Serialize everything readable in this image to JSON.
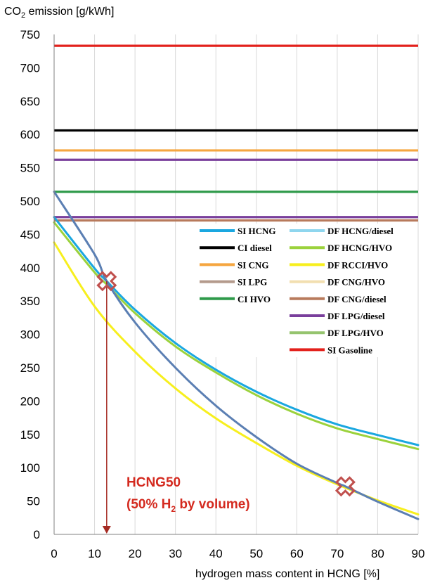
{
  "chart_data": {
    "type": "line",
    "ylabel_prefix": "CO",
    "ylabel_sub": "2",
    "ylabel_suffix": " emission [g/kWh]",
    "xlabel": "hydrogen mass content in HCNG [%]",
    "xlim": [
      0,
      90
    ],
    "ylim": [
      0,
      750
    ],
    "x_ticks": [
      "0",
      "10",
      "20",
      "30",
      "40",
      "50",
      "60",
      "70",
      "80",
      "90"
    ],
    "y_ticks": [
      "0",
      "50",
      "100",
      "150",
      "200",
      "250",
      "300",
      "350",
      "400",
      "450",
      "500",
      "550",
      "600",
      "650",
      "700",
      "750"
    ],
    "grid": "vertical",
    "legend_placement": "right",
    "legend": [
      {
        "name": "SI HCNG",
        "color": "#1aa7e0"
      },
      {
        "name": "CI diesel",
        "color": "#000000"
      },
      {
        "name": "SI CNG",
        "color": "#f5a640"
      },
      {
        "name": "SI LPG",
        "color": "#b49a8c"
      },
      {
        "name": "CI HVO",
        "color": "#2e9a4a"
      },
      {
        "name": "DF HCNG/diesel",
        "color": "#8fd6ee"
      },
      {
        "name": "DF HCNG/HVO",
        "color": "#9bd23c"
      },
      {
        "name": "DF RCCI/HVO",
        "color": "#f7ef1e"
      },
      {
        "name": "DF CNG/HVO",
        "color": "#f2dfb0"
      },
      {
        "name": "DF CNG/diesel",
        "color": "#b87a5c"
      },
      {
        "name": "DF LPG/diesel",
        "color": "#7a3f9c"
      },
      {
        "name": "DF LPG/HVO",
        "color": "#95c46e"
      },
      {
        "name": "SI Gasoline",
        "color": "#e3211c"
      }
    ],
    "horizontal_series": [
      {
        "value": 733,
        "color": "#e3211c"
      },
      {
        "value": 606,
        "color": "#000000"
      },
      {
        "value": 576,
        "color": "#f5a640"
      },
      {
        "value": 562,
        "color": "#7a3f9c"
      },
      {
        "value": 514,
        "color": "#2e9a4a"
      },
      {
        "value": 476,
        "color": "#7a3f9c"
      },
      {
        "value": 471,
        "color": "#b87a5c"
      }
    ],
    "curve_series": [
      {
        "color": "#9bd23c",
        "x": [
          0,
          10,
          13,
          20,
          30,
          40,
          50,
          60,
          70,
          80,
          90
        ],
        "y": [
          468,
          393,
          375,
          332,
          282,
          243,
          209,
          181,
          159,
          143,
          128
        ]
      },
      {
        "color": "#1aa7e0",
        "x": [
          0,
          10,
          13,
          20,
          30,
          40,
          50,
          60,
          70,
          80,
          90
        ],
        "y": [
          476,
          399,
          380,
          337,
          287,
          247,
          214,
          187,
          165,
          149,
          134
        ]
      },
      {
        "color": "#f7ef1e",
        "x": [
          0,
          10,
          20,
          30,
          40,
          50,
          60,
          70,
          80,
          90
        ],
        "y": [
          438,
          342,
          274,
          219,
          174,
          137,
          103,
          75,
          51,
          30
        ]
      },
      {
        "color": "#5b7fb3",
        "x": [
          0,
          10,
          13,
          20,
          30,
          40,
          50,
          60,
          70,
          72,
          80,
          90
        ],
        "y": [
          514,
          420,
          380,
          318,
          250,
          193,
          146,
          106,
          77,
          72,
          49,
          23
        ]
      }
    ],
    "markers": [
      {
        "x": 13,
        "y": 380,
        "symbol": "cross",
        "color": "#c0504d"
      },
      {
        "x": 72,
        "y": 72,
        "symbol": "cross",
        "color": "#c0504d"
      }
    ],
    "arrow": {
      "x": 13,
      "from_y": 380,
      "to_y": 0,
      "color": "#a52a22"
    },
    "annotation": {
      "line1": "HCNG50",
      "line2_prefix": "(50% H",
      "line2_sub": "2",
      "line2_suffix": " by volume)",
      "x": 15,
      "y": 73
    }
  }
}
